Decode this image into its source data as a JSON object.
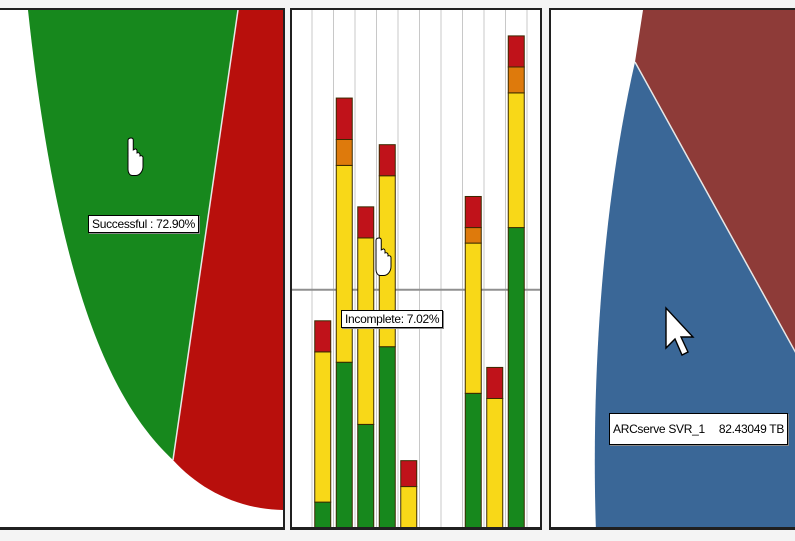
{
  "colors": {
    "success": "#17881d",
    "failed": "#b80f0c",
    "incomplete": "#f8d818",
    "warning": "#de7a0c",
    "barRed": "#c0121a",
    "blueSlice": "#3a6797",
    "redSlice": "#8e3b38"
  },
  "tooltips": {
    "pie1": "Successful : 72.90%",
    "bars": "Incomplete: 7.02%",
    "pie2_name": "ARCserve SVR_1",
    "pie2_value": "82.43049 TB"
  },
  "cursor_icons": [
    "hand-pointer-icon",
    "hand-pointer-icon",
    "arrow-pointer-icon"
  ],
  "chart_data": [
    {
      "type": "pie",
      "slices": [
        {
          "label": "Successful",
          "percent": 72.9,
          "color": "#17881d"
        },
        {
          "label": "",
          "percent": 27.1,
          "color": "#b80f0c"
        }
      ]
    },
    {
      "type": "bar",
      "stacked": true,
      "categories": [
        "",
        "",
        "",
        "",
        "",
        "",
        "",
        "",
        "",
        "",
        "",
        ""
      ],
      "ylim": [
        0,
        100
      ],
      "reference_line": 46,
      "series": [
        {
          "color": "#17881d",
          "values": [
            5,
            32,
            20,
            35,
            0,
            0,
            0,
            26,
            0,
            58,
            0,
            0
          ]
        },
        {
          "color": "#f8d818",
          "values": [
            29,
            38,
            36,
            33,
            8,
            0,
            0,
            29,
            25,
            26,
            0,
            0
          ]
        },
        {
          "color": "#de7a0c",
          "values": [
            0,
            5,
            0,
            0,
            0,
            0,
            0,
            3,
            0,
            5,
            0,
            0
          ]
        },
        {
          "color": "#c0121a",
          "values": [
            6,
            8,
            6,
            6,
            5,
            0,
            0,
            6,
            6,
            6,
            0,
            0
          ]
        }
      ]
    },
    {
      "type": "pie",
      "slices": [
        {
          "label": "ARCserve SVR_1",
          "value": 82.43049,
          "unit": "TB",
          "color": "#3a6797"
        },
        {
          "label": "",
          "color": "#8e3b38"
        }
      ]
    }
  ]
}
